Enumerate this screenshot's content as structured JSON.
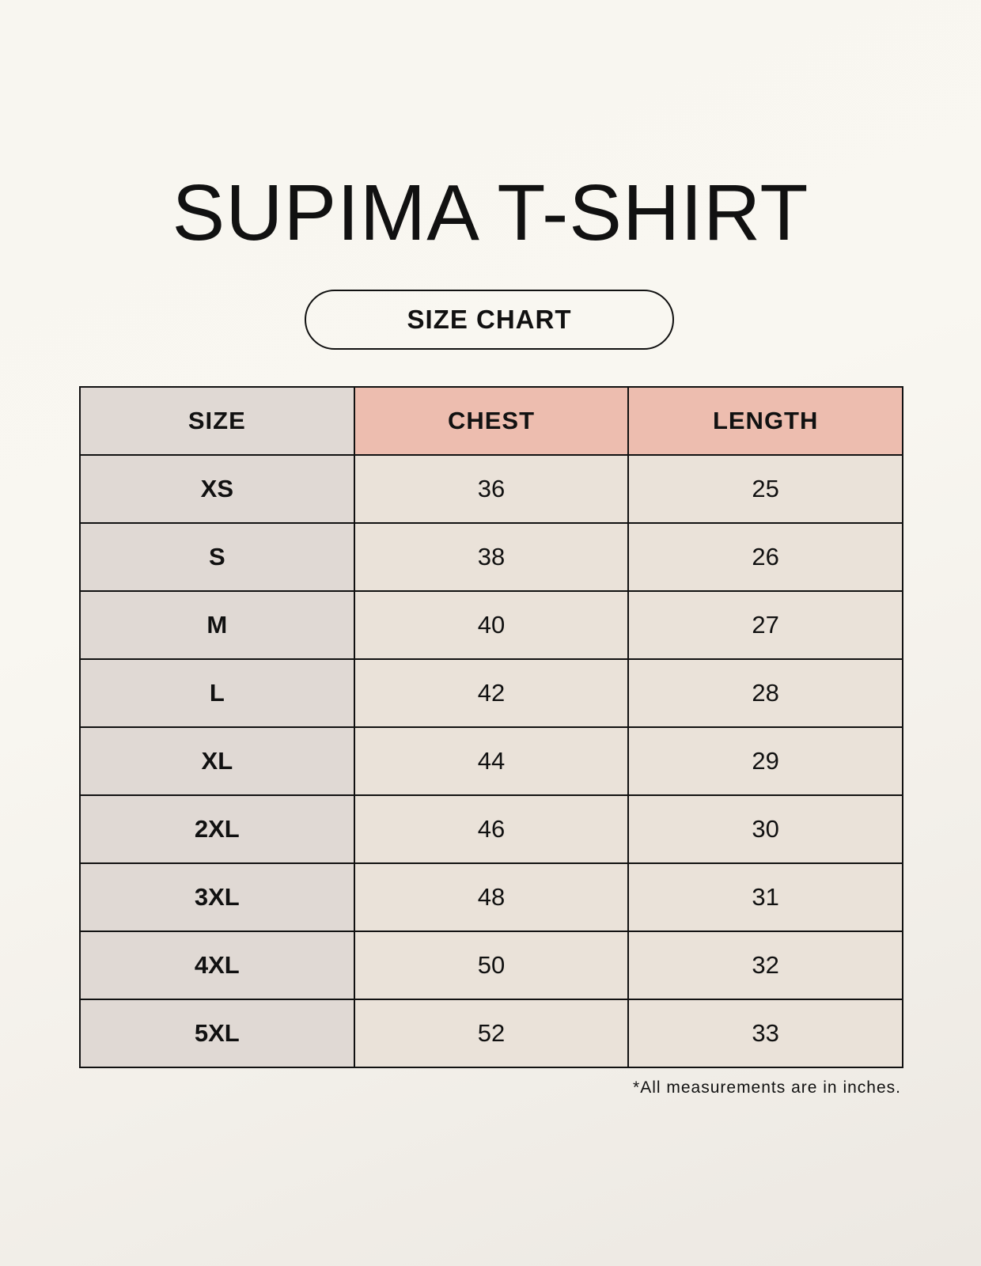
{
  "title": "SUPIMA T-SHIRT",
  "subtitle": "SIZE CHART",
  "table": {
    "headers": [
      "SIZE",
      "CHEST",
      "LENGTH"
    ],
    "rows": [
      [
        "XS",
        "36",
        "25"
      ],
      [
        "S",
        "38",
        "26"
      ],
      [
        "M",
        "40",
        "27"
      ],
      [
        "L",
        "42",
        "28"
      ],
      [
        "XL",
        "44",
        "29"
      ],
      [
        "2XL",
        "46",
        "30"
      ],
      [
        "3XL",
        "48",
        "31"
      ],
      [
        "4XL",
        "50",
        "32"
      ],
      [
        "5XL",
        "52",
        "33"
      ]
    ]
  },
  "footnote": "*All measurements are in inches.",
  "colors": {
    "size_column": "#e0d9d4",
    "header_accent": "#edbdaf",
    "cell": "#eae2d9"
  }
}
